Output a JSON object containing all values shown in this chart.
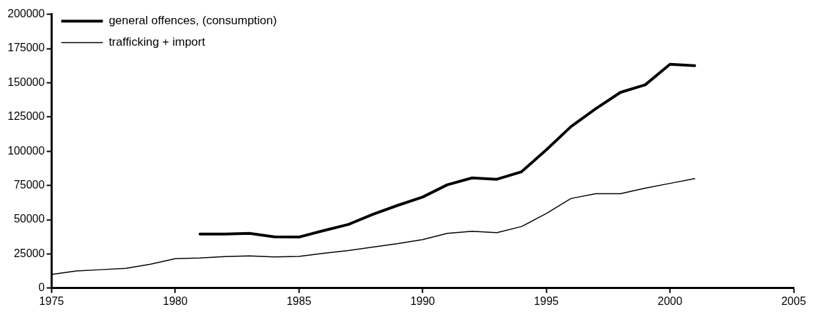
{
  "chart_data": {
    "type": "line",
    "x": [
      1975,
      1976,
      1977,
      1978,
      1979,
      1980,
      1981,
      1982,
      1983,
      1984,
      1985,
      1986,
      1987,
      1988,
      1989,
      1990,
      1991,
      1992,
      1993,
      1994,
      1995,
      1996,
      1997,
      1998,
      1999,
      2000,
      2001
    ],
    "series": [
      {
        "name": "general offences, (consumption)",
        "color": "#000000",
        "values": [
          null,
          null,
          null,
          null,
          null,
          null,
          39500,
          39500,
          40000,
          37500,
          37300,
          42000,
          46500,
          54000,
          60500,
          66500,
          75500,
          80500,
          79500,
          85000,
          101000,
          118000,
          131000,
          143000,
          148500,
          163500,
          162500
        ]
      },
      {
        "name": "trafficking + import",
        "color": "#000000",
        "values": [
          10000,
          12500,
          13500,
          14500,
          17500,
          21500,
          22000,
          23000,
          23500,
          22800,
          23200,
          25500,
          27500,
          30000,
          32500,
          35500,
          40000,
          41500,
          40500,
          45000,
          54500,
          65500,
          69000,
          69000,
          73000,
          76500,
          80000
        ]
      }
    ],
    "xlim": [
      1975,
      2005
    ],
    "xticks": [
      1975,
      1980,
      1985,
      1990,
      1995,
      2000,
      2005
    ],
    "ylim": [
      0,
      200000
    ],
    "yticks": [
      0,
      25000,
      50000,
      75000,
      100000,
      125000,
      150000,
      175000,
      200000
    ],
    "grid": false,
    "legend": "top left",
    "marker": "none",
    "line_style": "solid"
  }
}
